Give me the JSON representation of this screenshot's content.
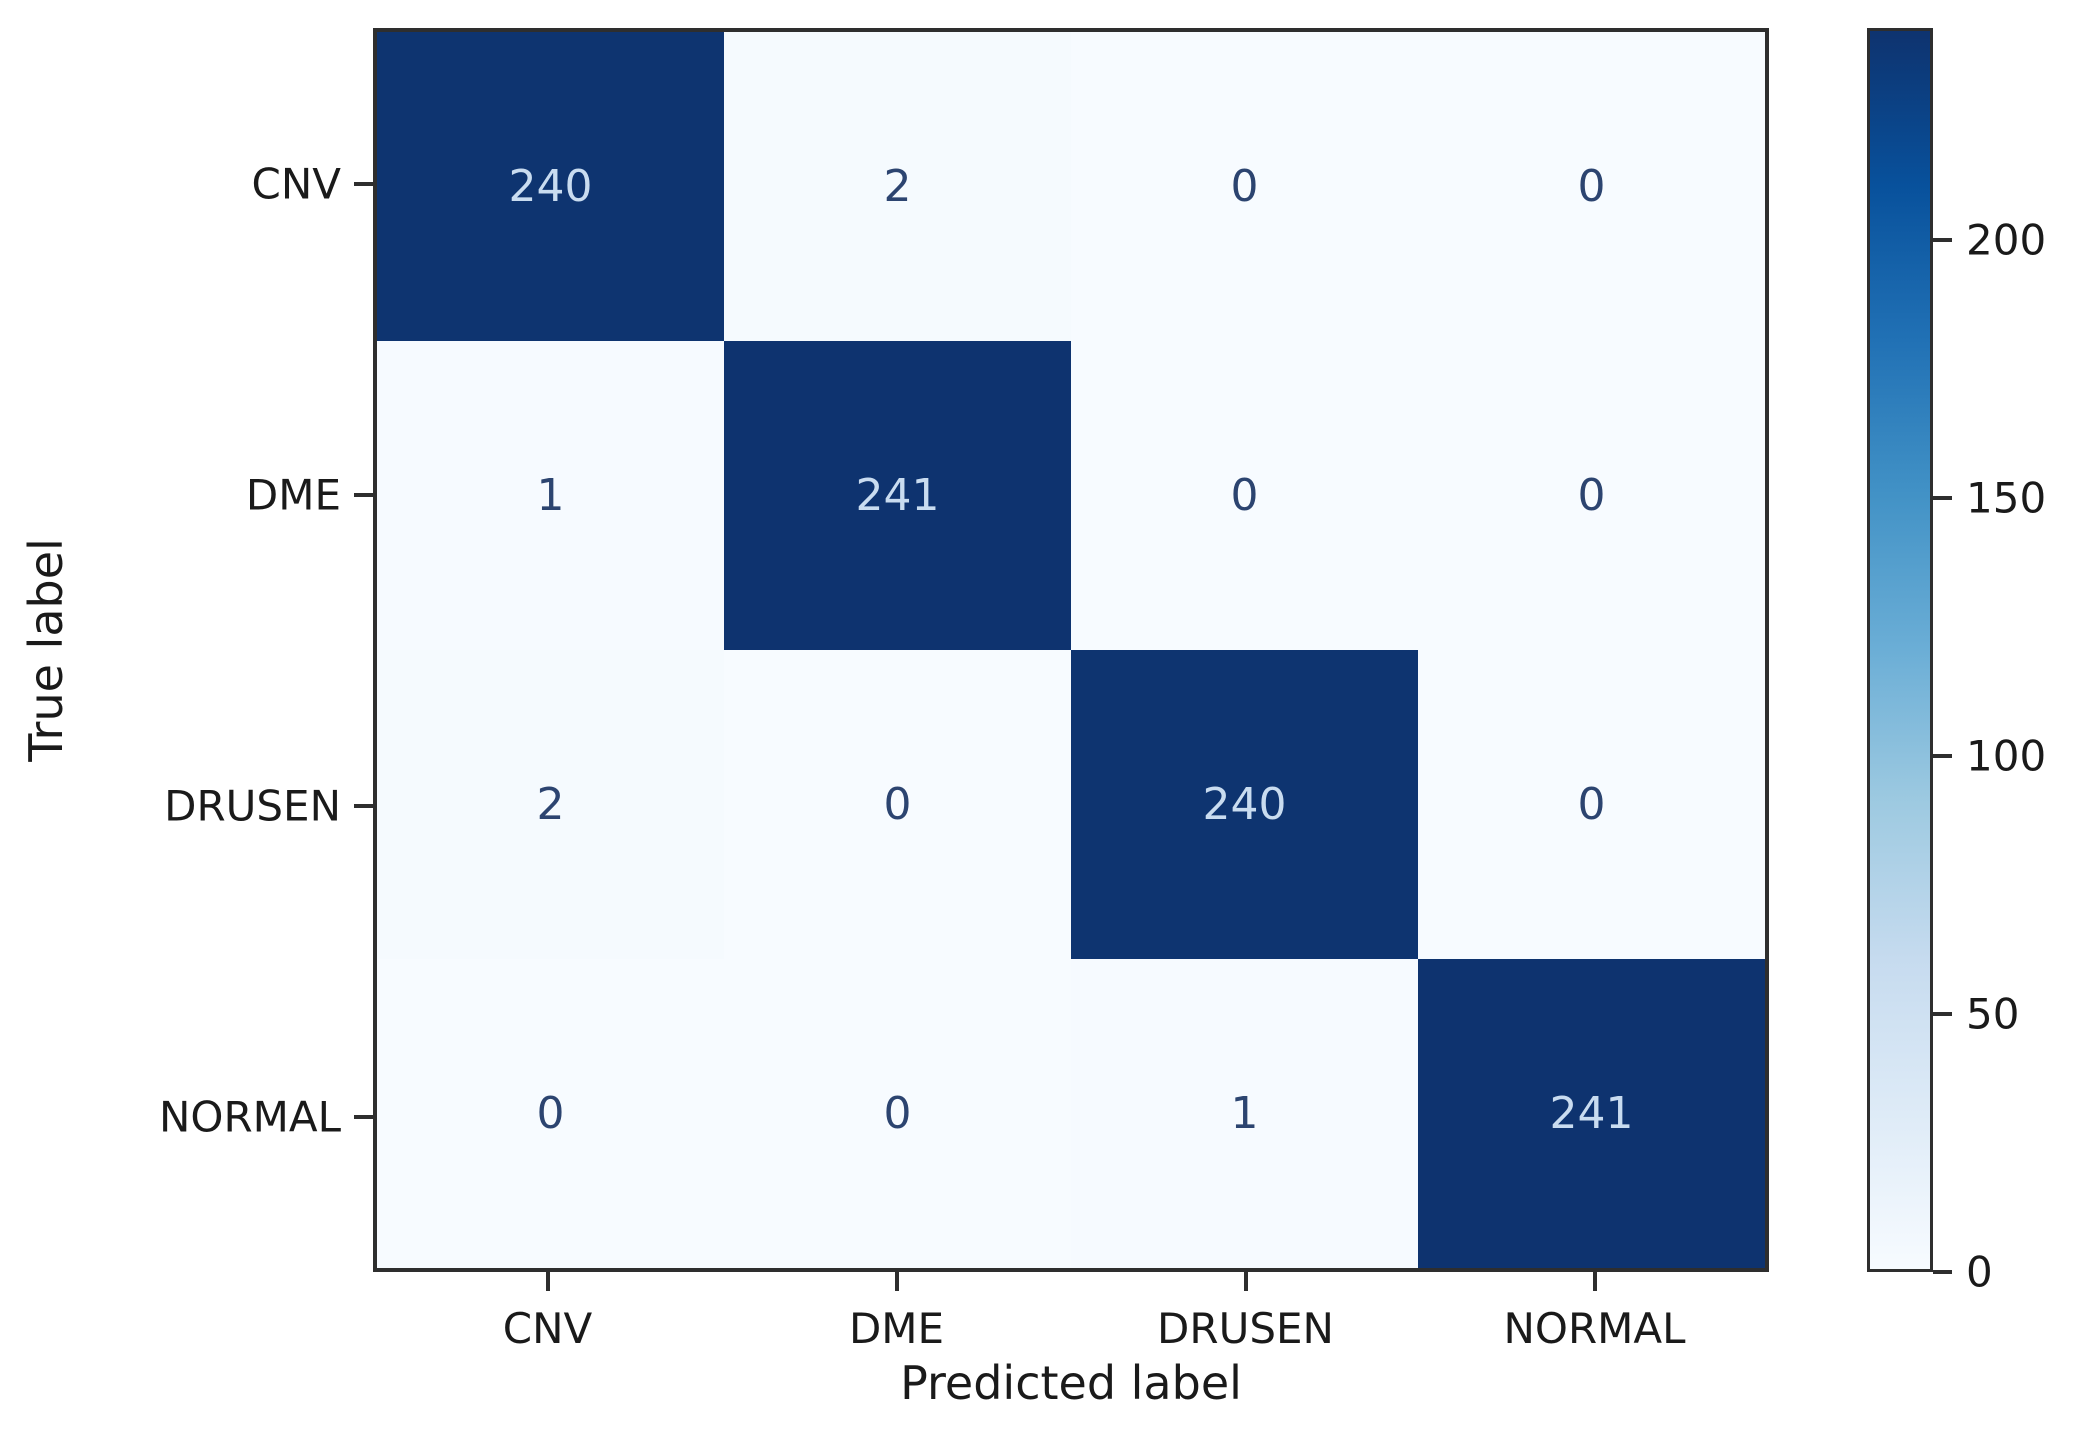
{
  "chart_data": {
    "type": "heatmap",
    "title": "",
    "xlabel": "Predicted label",
    "ylabel": "True label",
    "x_categories": [
      "CNV",
      "DME",
      "DRUSEN",
      "NORMAL"
    ],
    "y_categories": [
      "CNV",
      "DME",
      "DRUSEN",
      "NORMAL"
    ],
    "matrix": [
      [
        240,
        2,
        0,
        0
      ],
      [
        1,
        241,
        0,
        0
      ],
      [
        2,
        0,
        240,
        0
      ],
      [
        0,
        0,
        1,
        241
      ]
    ],
    "vmin": 0,
    "vmax": 241,
    "colormap": "Blues",
    "colorbar_ticks": [
      0,
      50,
      100,
      150,
      200
    ],
    "colorbar_position": "right",
    "grid": false,
    "colors": {
      "cmap_low": "#f7fbff",
      "cmap_high": "#0e336f",
      "text_on_dark": "#c9dcf0",
      "text_on_light": "#2c4470",
      "spine": "#2e2e2e",
      "tick_label": "#1a1a1a",
      "background": "#ffffff"
    }
  }
}
